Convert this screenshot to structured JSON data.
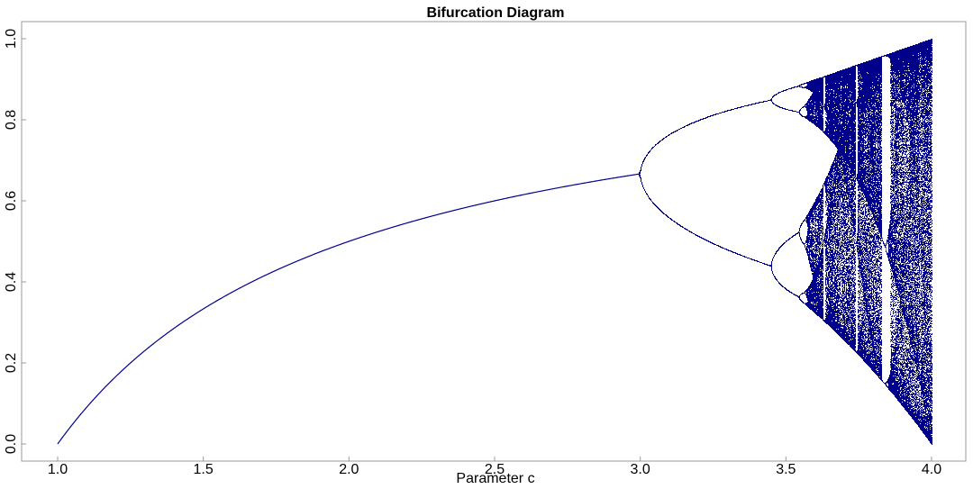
{
  "chart_data": {
    "type": "scatter",
    "title": "Bifurcation Diagram",
    "xlabel": "Parameter c",
    "ylabel": "",
    "xlim": [
      1.0,
      4.0
    ],
    "ylim": [
      0.0,
      1.0
    ],
    "x_ticks": [
      "1.0",
      "1.5",
      "2.0",
      "2.5",
      "3.0",
      "3.5",
      "4.0"
    ],
    "y_ticks": [
      "0.0",
      "0.2",
      "0.4",
      "0.6",
      "0.8",
      "1.0"
    ],
    "map": "logistic x -> c*x*(1-x)",
    "series": [
      {
        "points": [
          {
            "x": 1.0,
            "y": 0.0
          },
          {
            "x": 1.5,
            "y": 0.333
          },
          {
            "x": 2.0,
            "y": 0.5
          },
          {
            "x": 2.5,
            "y": 0.6
          },
          {
            "x": 3.0,
            "y": 0.667
          },
          {
            "x": 3.2,
            "y": 0.513
          },
          {
            "x": 3.2,
            "y": 0.799
          },
          {
            "x": 3.449,
            "y": 0.44
          },
          {
            "x": 3.449,
            "y": 0.852
          },
          {
            "x": 3.5,
            "y": 0.383
          },
          {
            "x": 3.5,
            "y": 0.501
          },
          {
            "x": 3.5,
            "y": 0.827
          },
          {
            "x": 3.5,
            "y": 0.875
          },
          {
            "x": 3.83,
            "y": 0.156
          },
          {
            "x": 3.83,
            "y": 0.505
          },
          {
            "x": 3.83,
            "y": 0.957
          },
          {
            "x": 4.0,
            "y": 0.0
          },
          {
            "x": 4.0,
            "y": 1.0
          }
        ]
      }
    ],
    "grid": false,
    "legend": "none",
    "color": "#00008b"
  }
}
